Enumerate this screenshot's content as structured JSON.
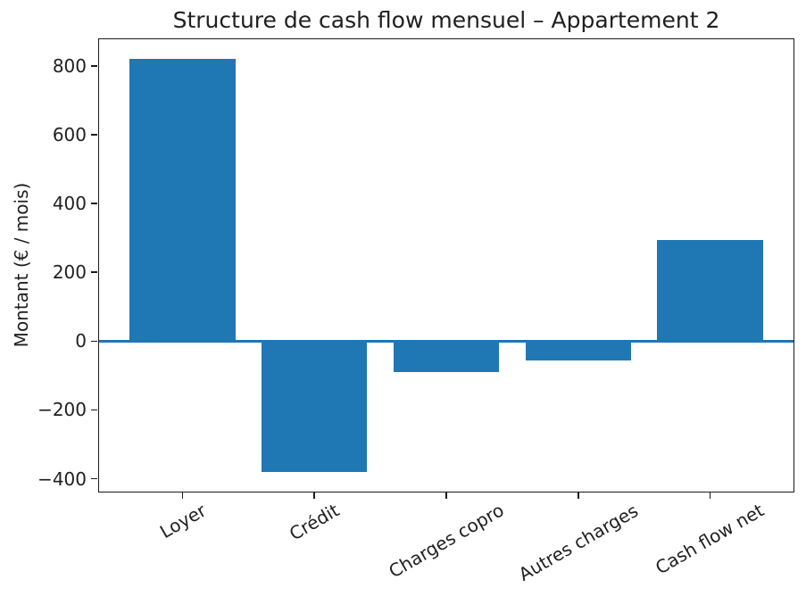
{
  "chart_data": {
    "type": "bar",
    "title": "Structure de cash flow mensuel – Appartement 2",
    "xlabel": "",
    "ylabel": "Montant (€ / mois)",
    "categories": [
      "Loyer",
      "Crédit",
      "Charges copro",
      "Autres charges",
      "Cash flow net"
    ],
    "values": [
      820,
      -380,
      -90,
      -55,
      295
    ],
    "ylim": [
      -440,
      880
    ],
    "xlim": [
      -0.64,
      4.64
    ],
    "yticks": [
      {
        "value": 800,
        "label": "800"
      },
      {
        "value": 600,
        "label": "600"
      },
      {
        "value": 400,
        "label": "400"
      },
      {
        "value": 200,
        "label": "200"
      },
      {
        "value": 0,
        "label": "0"
      },
      {
        "value": -200,
        "label": "−200"
      },
      {
        "value": -400,
        "label": "−400"
      }
    ],
    "bar_width": 0.8,
    "bar_color": "#1f77b4",
    "zero_line_color": "#1f77b4",
    "grid": false,
    "legend": "none",
    "x_tick_rotation_deg": 30,
    "background": "#ffffff",
    "text_color": "#1f1f1f"
  }
}
